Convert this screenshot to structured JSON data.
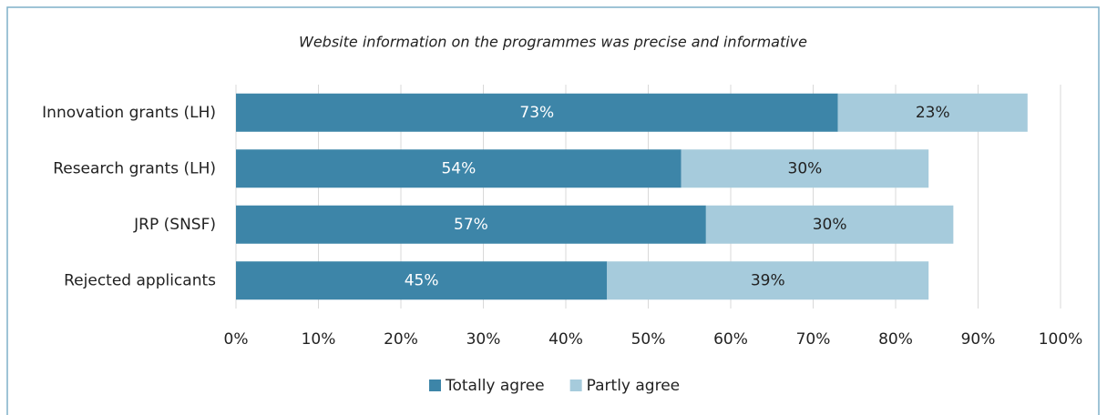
{
  "chart_data": {
    "type": "stacked_barh",
    "title": "Website information on the programmes was precise and informative",
    "categories": [
      "Innovation grants (LH)",
      "Research grants (LH)",
      "JRP (SNSF)",
      "Rejected applicants"
    ],
    "series": [
      {
        "name": "Totally agree",
        "color": "#3d85a8",
        "values": [
          73,
          54,
          57,
          45
        ],
        "value_labels": [
          "73%",
          "54%",
          "57%",
          "45%"
        ]
      },
      {
        "name": "Partly agree",
        "color": "#a6cbdc",
        "values": [
          23,
          30,
          30,
          39
        ],
        "value_labels": [
          "23%",
          "30%",
          "30%",
          "39%"
        ]
      }
    ],
    "xlim": [
      0,
      100
    ],
    "xticks": [
      {
        "value": 0,
        "label": "0%"
      },
      {
        "value": 10,
        "label": "10%"
      },
      {
        "value": 20,
        "label": "20%"
      },
      {
        "value": 30,
        "label": "30%"
      },
      {
        "value": 40,
        "label": "40%"
      },
      {
        "value": 50,
        "label": "50%"
      },
      {
        "value": 60,
        "label": "60%"
      },
      {
        "value": 70,
        "label": "70%"
      },
      {
        "value": 80,
        "label": "80%"
      },
      {
        "value": 90,
        "label": "90%"
      },
      {
        "value": 100,
        "label": "100%"
      }
    ],
    "grid": true,
    "legend": "bottom"
  }
}
